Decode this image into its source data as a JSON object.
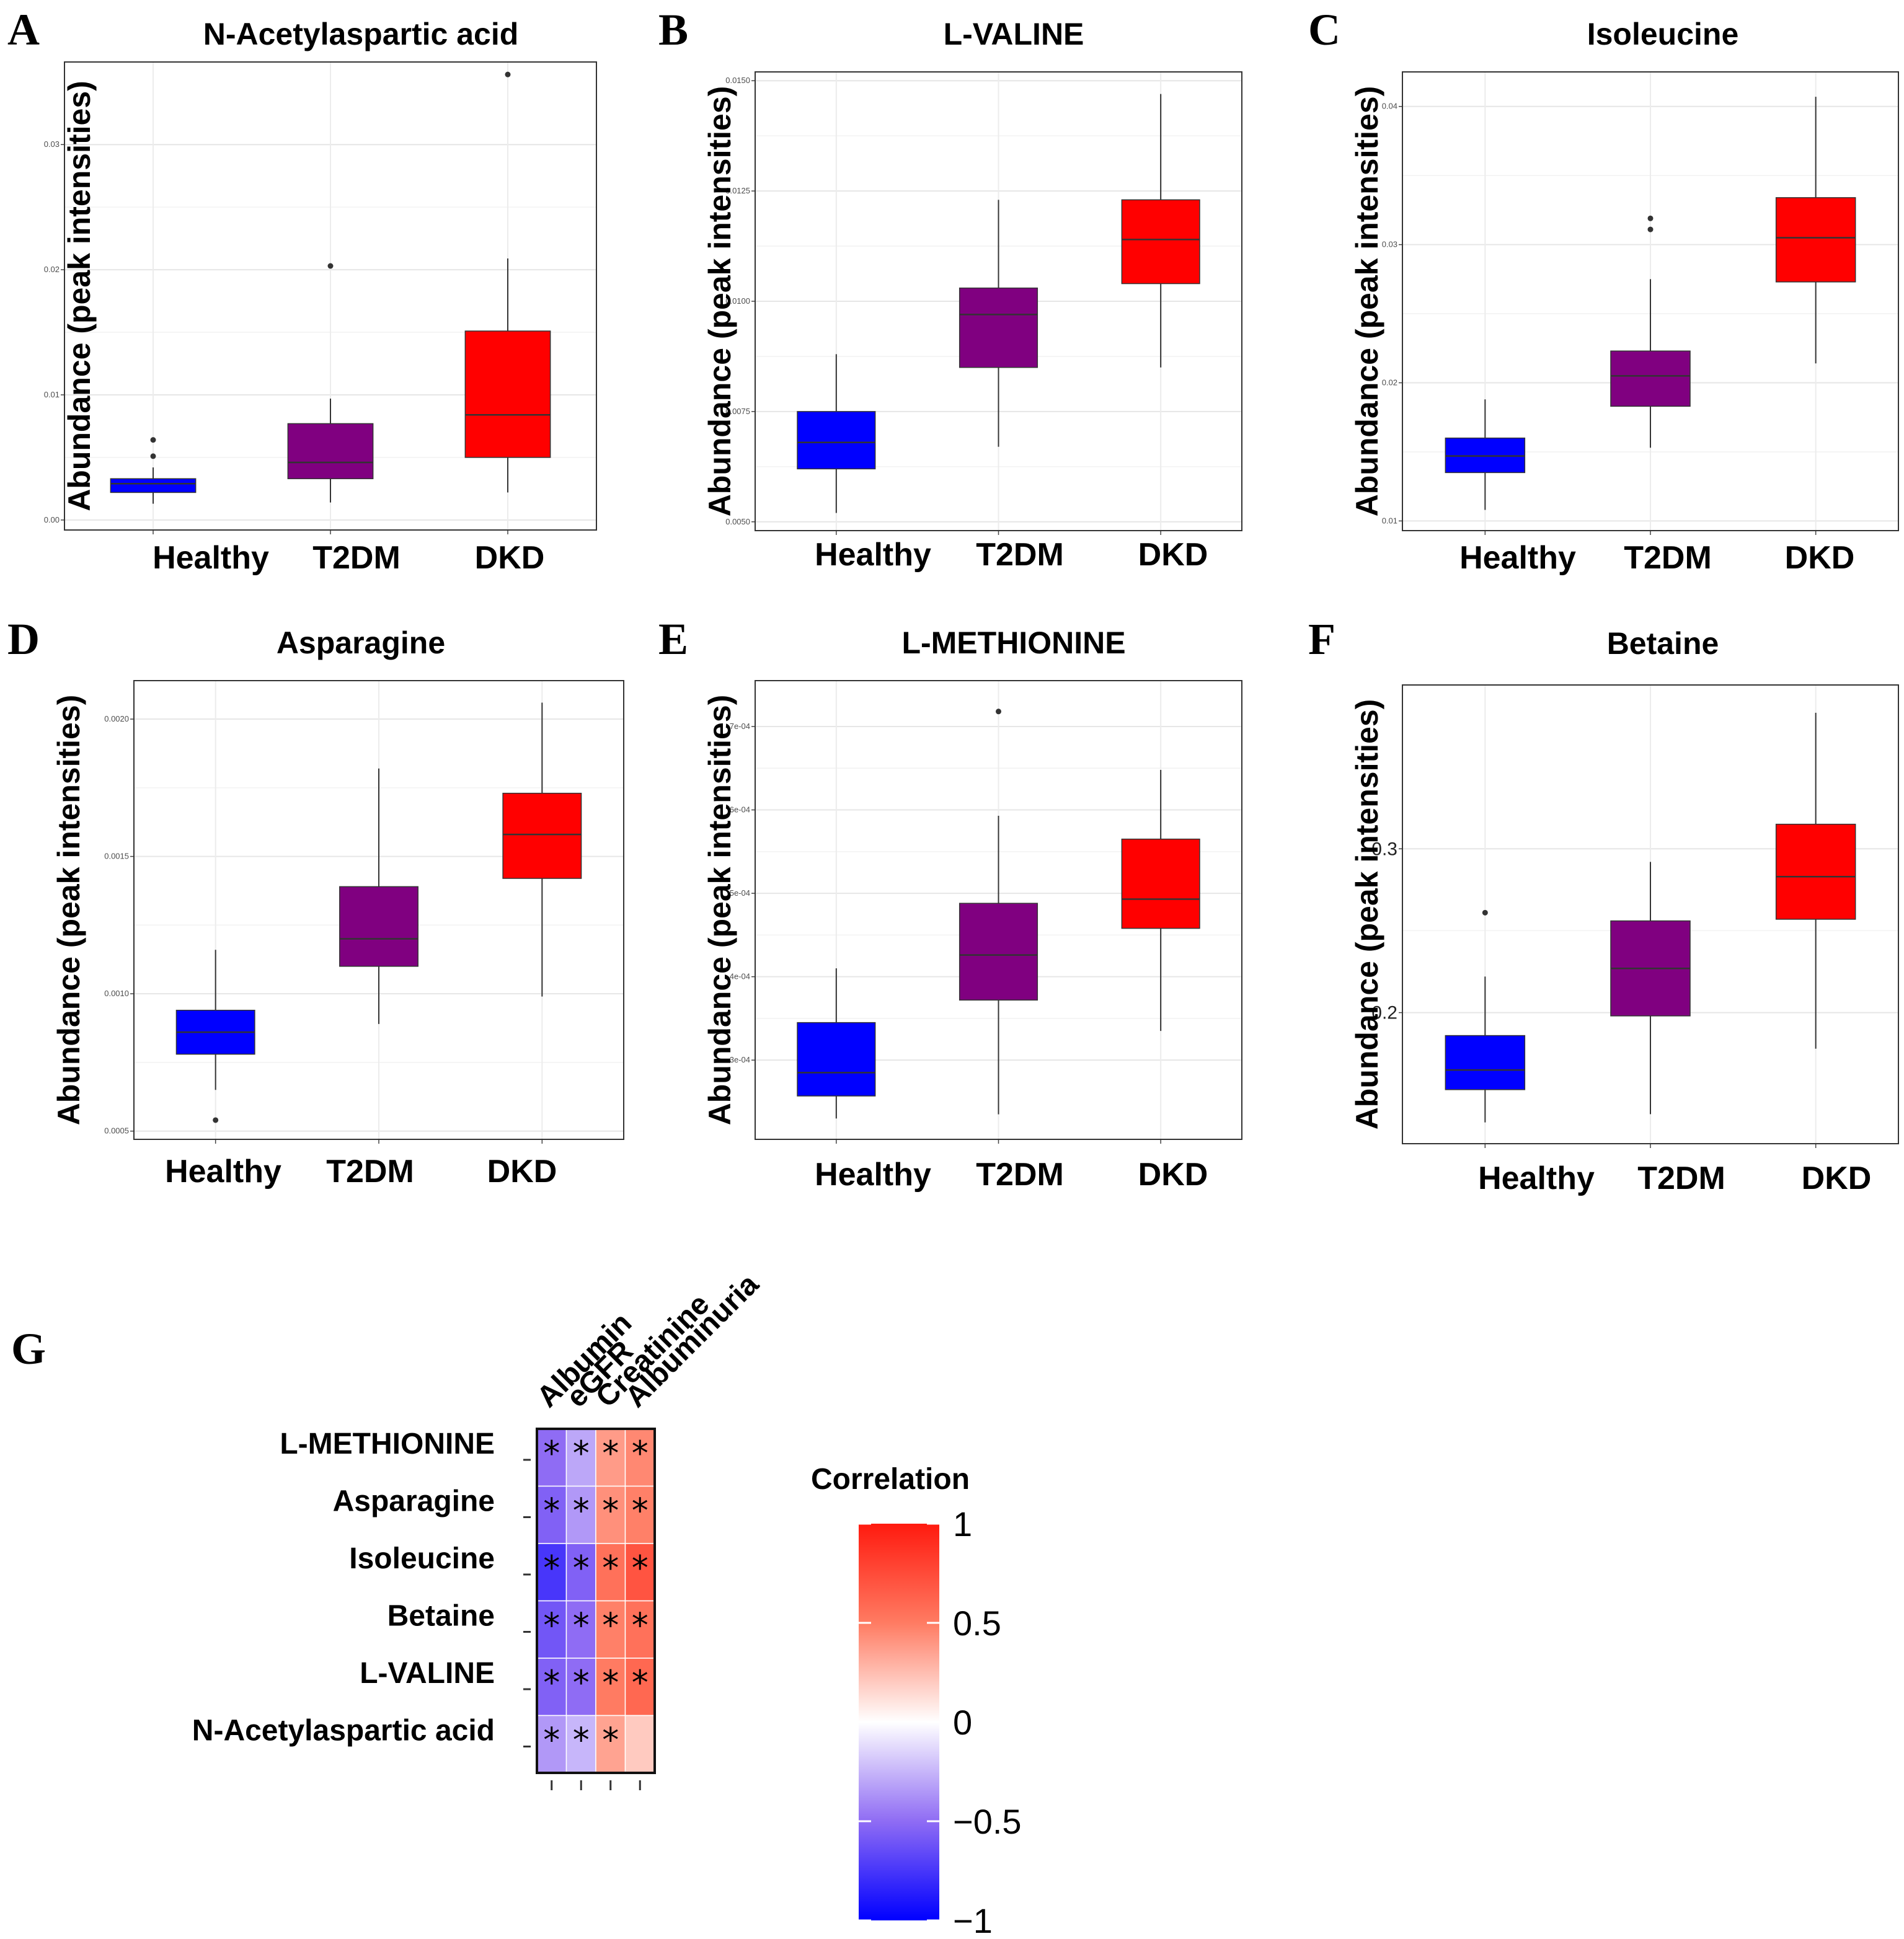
{
  "colors": {
    "healthy": "#0000ff",
    "t2dm": "#800080",
    "dkd": "#ff0000",
    "low": "#0000ff",
    "mid": "#ffffff",
    "high": "#ff0000"
  },
  "chart_data": [
    {
      "type": "box",
      "label": "A",
      "title": "N-Acetylaspartic acid",
      "ylabel": "Abundance (peak intensities)",
      "categories": [
        "Healthy",
        "T2DM",
        "DKD"
      ],
      "ylim": [
        -0.0008,
        0.0366
      ],
      "yticks": [
        0.0,
        0.01,
        0.02,
        0.03
      ],
      "ytick_labels": [
        "0.00",
        "0.01",
        "0.02",
        "0.03"
      ],
      "boxes": [
        {
          "min": 0.0013,
          "q1": 0.0022,
          "median": 0.0029,
          "q3": 0.0033,
          "max": 0.0042,
          "outliers": [
            0.0051,
            0.0064
          ]
        },
        {
          "min": 0.0014,
          "q1": 0.0033,
          "median": 0.0046,
          "q3": 0.0077,
          "max": 0.0097,
          "outliers": [
            0.0203
          ]
        },
        {
          "min": 0.0022,
          "q1": 0.005,
          "median": 0.0084,
          "q3": 0.0151,
          "max": 0.0209,
          "outliers": [
            0.0356
          ]
        }
      ]
    },
    {
      "type": "box",
      "label": "B",
      "title": "L-VALINE",
      "ylabel": "Abundance (peak intensities)",
      "categories": [
        "Healthy",
        "T2DM",
        "DKD"
      ],
      "ylim": [
        0.0048,
        0.0152
      ],
      "yticks": [
        0.005,
        0.0075,
        0.01,
        0.0125,
        0.015
      ],
      "ytick_labels": [
        "0.0050",
        "0.0075",
        "0.0100",
        "0.0125",
        "0.0150"
      ],
      "boxes": [
        {
          "min": 0.0052,
          "q1": 0.0062,
          "median": 0.0068,
          "q3": 0.0075,
          "max": 0.0088,
          "outliers": []
        },
        {
          "min": 0.0067,
          "q1": 0.0085,
          "median": 0.0097,
          "q3": 0.0103,
          "max": 0.0123,
          "outliers": []
        },
        {
          "min": 0.0085,
          "q1": 0.0104,
          "median": 0.0114,
          "q3": 0.0123,
          "max": 0.0147,
          "outliers": []
        }
      ]
    },
    {
      "type": "box",
      "label": "C",
      "title": "Isoleucine",
      "ylabel": "Abundance (peak intensities)",
      "categories": [
        "Healthy",
        "T2DM",
        "DKD"
      ],
      "ylim": [
        0.0093,
        0.0425
      ],
      "yticks": [
        0.01,
        0.02,
        0.03,
        0.04
      ],
      "ytick_labels": [
        "0.01",
        "0.02",
        "0.03",
        "0.04"
      ],
      "boxes": [
        {
          "min": 0.0108,
          "q1": 0.0135,
          "median": 0.0147,
          "q3": 0.016,
          "max": 0.0188,
          "outliers": []
        },
        {
          "min": 0.0153,
          "q1": 0.0183,
          "median": 0.0205,
          "q3": 0.0223,
          "max": 0.0275,
          "outliers": [
            0.0311,
            0.0319
          ]
        },
        {
          "min": 0.0214,
          "q1": 0.0273,
          "median": 0.0305,
          "q3": 0.0334,
          "max": 0.0407,
          "outliers": []
        }
      ]
    },
    {
      "type": "box",
      "label": "D",
      "title": "Asparagine",
      "ylabel": "Abundance (peak intensities)",
      "categories": [
        "Healthy",
        "T2DM",
        "DKD"
      ],
      "ylim": [
        0.00047,
        0.00214
      ],
      "yticks": [
        0.0005,
        0.001,
        0.0015,
        0.002
      ],
      "ytick_labels": [
        "0.0005",
        "0.0010",
        "0.0015",
        "0.0020"
      ],
      "boxes": [
        {
          "min": 0.00065,
          "q1": 0.00078,
          "median": 0.00086,
          "q3": 0.00094,
          "max": 0.00116,
          "outliers": [
            0.00054
          ]
        },
        {
          "min": 0.00089,
          "q1": 0.0011,
          "median": 0.0012,
          "q3": 0.00139,
          "max": 0.00182,
          "outliers": []
        },
        {
          "min": 0.00099,
          "q1": 0.00142,
          "median": 0.00158,
          "q3": 0.00173,
          "max": 0.00206,
          "outliers": []
        }
      ]
    },
    {
      "type": "box",
      "label": "E",
      "title": "L-METHIONINE",
      "ylabel": "Abundance (peak intensities)",
      "categories": [
        "Healthy",
        "T2DM",
        "DKD"
      ],
      "ylim": [
        0.000205,
        0.000755
      ],
      "yticks": [
        0.0003,
        0.0004,
        0.0005,
        0.0006,
        0.0007
      ],
      "ytick_labels": [
        "3e-04",
        "4e-04",
        "5e-04",
        "6e-04",
        "7e-04"
      ],
      "boxes": [
        {
          "min": 0.00023,
          "q1": 0.000257,
          "median": 0.000285,
          "q3": 0.000345,
          "max": 0.00041,
          "outliers": []
        },
        {
          "min": 0.000235,
          "q1": 0.000372,
          "median": 0.000426,
          "q3": 0.000488,
          "max": 0.000593,
          "outliers": [
            0.000718
          ]
        },
        {
          "min": 0.000335,
          "q1": 0.000458,
          "median": 0.000493,
          "q3": 0.000565,
          "max": 0.000648,
          "outliers": []
        }
      ]
    },
    {
      "type": "box",
      "label": "F",
      "title": "Betaine",
      "ylabel": "Abundance (peak intensities)",
      "categories": [
        "Healthy",
        "T2DM",
        "DKD"
      ],
      "ylim": [
        0.12,
        0.4
      ],
      "yticks": [
        0.2,
        0.3
      ],
      "ytick_labels": [
        "0.2",
        "0.3"
      ],
      "boxes": [
        {
          "min": 0.133,
          "q1": 0.153,
          "median": 0.165,
          "q3": 0.186,
          "max": 0.222,
          "outliers": [
            0.261
          ]
        },
        {
          "min": 0.138,
          "q1": 0.198,
          "median": 0.227,
          "q3": 0.256,
          "max": 0.292,
          "outliers": []
        },
        {
          "min": 0.178,
          "q1": 0.257,
          "median": 0.283,
          "q3": 0.315,
          "max": 0.383,
          "outliers": []
        }
      ]
    },
    {
      "type": "heatmap",
      "label": "G",
      "columns": [
        "Albumin",
        "eGFR",
        "Creatinine",
        "Albuminuria"
      ],
      "rows": [
        "L-METHIONINE",
        "Asparagine",
        "Isoleucine",
        "Betaine",
        "L-VALINE",
        "N-Acetylaspartic acid"
      ],
      "values": [
        [
          -0.5,
          -0.3,
          0.38,
          0.45
        ],
        [
          -0.55,
          -0.35,
          0.42,
          0.48
        ],
        [
          -0.75,
          -0.55,
          0.55,
          0.7
        ],
        [
          -0.6,
          -0.5,
          0.48,
          0.55
        ],
        [
          -0.55,
          -0.5,
          0.5,
          0.6
        ],
        [
          -0.35,
          -0.25,
          0.35,
          0.2
        ]
      ],
      "significant": [
        [
          true,
          true,
          true,
          true
        ],
        [
          true,
          true,
          true,
          true
        ],
        [
          true,
          true,
          true,
          true
        ],
        [
          true,
          true,
          true,
          true
        ],
        [
          true,
          true,
          true,
          true
        ],
        [
          true,
          true,
          true,
          false
        ]
      ],
      "legend_title": "Correlation",
      "legend_ticks": [
        1,
        0.5,
        0,
        -0.5,
        -1
      ],
      "legend_tick_labels": [
        "1",
        "0.5",
        "0",
        "−0.5",
        "−1"
      ]
    }
  ]
}
